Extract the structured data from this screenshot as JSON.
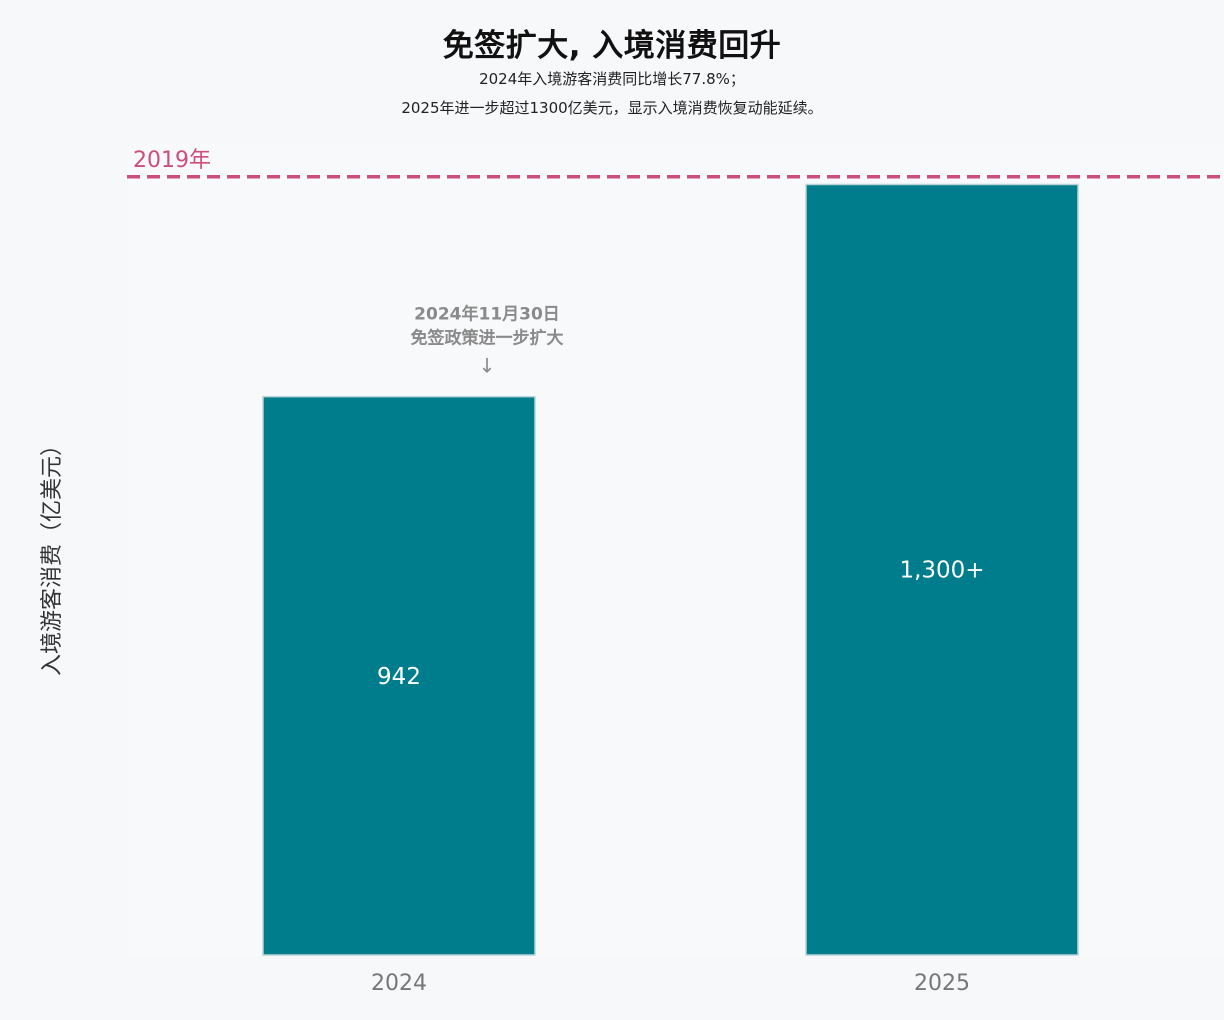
{
  "header": {
    "title": "免签扩大, 入境消费回升",
    "subtitle_line1": "2024年入境游客消费同比增长77.8%；",
    "subtitle_line2": "2025年进一步超过1300亿美元，显示入境消费恢复动能延续。"
  },
  "colors": {
    "bar": "#007d8c",
    "bar_border": "#b9d5d9",
    "reference_line": "#cc4e7c",
    "annotation": "#8a8a8a",
    "tick_label": "#777777",
    "plot_background": "#f8f9fb"
  },
  "chart_data": {
    "type": "bar",
    "categories": [
      "2024",
      "2025"
    ],
    "values": [
      942,
      1300
    ],
    "value_labels": [
      "942",
      "1,300+"
    ],
    "title": "免签扩大, 入境消费回升",
    "xlabel": "",
    "ylabel": "入境游客消费（亿美元）",
    "ylim": [
      0,
      1370
    ],
    "reference_line": {
      "label": "2019年",
      "value": 1313
    },
    "annotation": {
      "category": "2024",
      "line1": "2024年11月30日",
      "line2": "免签政策进一步扩大",
      "arrow": "↓"
    },
    "grid": false
  }
}
